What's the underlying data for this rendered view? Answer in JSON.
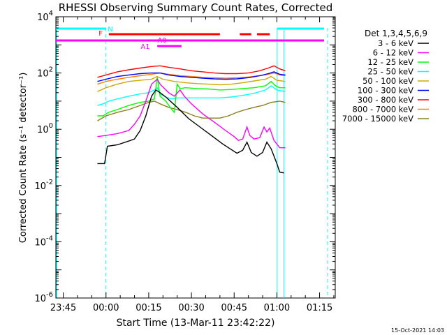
{
  "chart_data": {
    "type": "line",
    "title": "RHESSI Observing Summary Count Rates, Corrected",
    "xlabel": "Start Time (13-Mar-11 23:42:22)",
    "ylabel": "Corrected Count Rate (s⁻¹ detector⁻¹)",
    "y_scale": "log",
    "ylim": [
      1e-06,
      10000.0
    ],
    "xlim_minutes": [
      -17.6,
      80.5
    ],
    "x_tick_labels": [
      "23:45",
      "00:00",
      "00:15",
      "00:30",
      "00:45",
      "01:00",
      "01:15"
    ],
    "x_tick_minutes": [
      -15,
      0,
      15,
      30,
      45,
      60,
      75
    ],
    "y_tick_labels": [
      {
        "base": "10",
        "exp": "4",
        "value": 10000.0
      },
      {
        "base": "10",
        "exp": "2",
        "value": 100.0
      },
      {
        "base": "10",
        "exp": "0",
        "value": 1.0
      },
      {
        "base": "10",
        "exp": "-2",
        "value": 0.01
      },
      {
        "base": "10",
        "exp": "-4",
        "value": 0.0001
      },
      {
        "base": "10",
        "exp": "-6",
        "value": 1e-06
      }
    ],
    "legend_title": "Det 1,3,4,5,6,9",
    "legend_position": "right",
    "series": [
      {
        "name": "3 - 6 keV",
        "color": "#000000",
        "points": [
          [
            -3,
            0.06
          ],
          [
            -0.5,
            0.06
          ],
          [
            0.5,
            0.25
          ],
          [
            4,
            0.28
          ],
          [
            8,
            0.38
          ],
          [
            10,
            0.45
          ],
          [
            12,
            0.9
          ],
          [
            14,
            3
          ],
          [
            16,
            15
          ],
          [
            17.5,
            25
          ],
          [
            19,
            20
          ],
          [
            21,
            14
          ],
          [
            25,
            6
          ],
          [
            29,
            2.4
          ],
          [
            33,
            1.2
          ],
          [
            37,
            0.6
          ],
          [
            41,
            0.3
          ],
          [
            44,
            0.19
          ],
          [
            46,
            0.14
          ],
          [
            48,
            0.18
          ],
          [
            49.5,
            0.35
          ],
          [
            51,
            0.15
          ],
          [
            53,
            0.11
          ],
          [
            55,
            0.15
          ],
          [
            56.5,
            0.35
          ],
          [
            58,
            0.2
          ],
          [
            60,
            0.06
          ],
          [
            61,
            0.03
          ],
          [
            62.5,
            0.028
          ]
        ]
      },
      {
        "name": "6 - 12 keV",
        "color": "#ff00ff",
        "points": [
          [
            -3,
            0.55
          ],
          [
            0,
            0.6
          ],
          [
            4,
            0.7
          ],
          [
            8,
            0.9
          ],
          [
            10,
            1.5
          ],
          [
            12,
            3
          ],
          [
            14,
            10
          ],
          [
            16,
            40
          ],
          [
            18,
            60
          ],
          [
            19,
            40
          ],
          [
            22,
            20
          ],
          [
            24,
            15
          ],
          [
            26,
            25
          ],
          [
            27.5,
            15
          ],
          [
            30,
            8
          ],
          [
            34,
            3.5
          ],
          [
            38,
            1.8
          ],
          [
            42,
            0.9
          ],
          [
            45,
            0.55
          ],
          [
            46.5,
            0.4
          ],
          [
            48,
            0.45
          ],
          [
            49.5,
            1.2
          ],
          [
            50.5,
            0.6
          ],
          [
            52,
            0.45
          ],
          [
            54,
            0.5
          ],
          [
            55.5,
            1.2
          ],
          [
            56.5,
            0.8
          ],
          [
            57.5,
            1.1
          ],
          [
            59,
            0.4
          ],
          [
            61,
            0.22
          ],
          [
            63,
            0.22
          ]
        ]
      },
      {
        "name": "12 - 25 keV",
        "color": "#00ff00",
        "points": [
          [
            -3,
            3
          ],
          [
            -1,
            3
          ],
          [
            1,
            4
          ],
          [
            4,
            5
          ],
          [
            8,
            7
          ],
          [
            12,
            9
          ],
          [
            15,
            10
          ],
          [
            17,
            12
          ],
          [
            18,
            70
          ],
          [
            19,
            15
          ],
          [
            21,
            10
          ],
          [
            22.5,
            6
          ],
          [
            24,
            4
          ],
          [
            25,
            40
          ],
          [
            26,
            28
          ],
          [
            28,
            30
          ],
          [
            32,
            28
          ],
          [
            36,
            27
          ],
          [
            40,
            25
          ],
          [
            44,
            26
          ],
          [
            48,
            28
          ],
          [
            52,
            30
          ],
          [
            56,
            35
          ],
          [
            58,
            50
          ],
          [
            59.5,
            35
          ],
          [
            61,
            30
          ],
          [
            63,
            30
          ]
        ]
      },
      {
        "name": "25 - 50 keV",
        "color": "#00ffff",
        "points": [
          [
            -3,
            7
          ],
          [
            -1,
            8
          ],
          [
            1,
            10
          ],
          [
            4,
            12
          ],
          [
            8,
            15
          ],
          [
            12,
            18
          ],
          [
            15,
            20
          ],
          [
            17,
            25
          ],
          [
            18,
            30
          ],
          [
            19,
            18
          ],
          [
            21,
            14
          ],
          [
            23,
            12
          ],
          [
            25,
            13
          ],
          [
            28,
            13
          ],
          [
            32,
            13
          ],
          [
            36,
            13
          ],
          [
            40,
            13
          ],
          [
            44,
            14
          ],
          [
            48,
            16
          ],
          [
            52,
            19
          ],
          [
            56,
            25
          ],
          [
            58,
            35
          ],
          [
            60,
            25
          ],
          [
            63,
            22
          ]
        ]
      },
      {
        "name": "50 - 100 keV",
        "color": "#ccaa00",
        "points": [
          [
            -3,
            22
          ],
          [
            0,
            30
          ],
          [
            4,
            40
          ],
          [
            8,
            50
          ],
          [
            12,
            55
          ],
          [
            16,
            60
          ],
          [
            18,
            75
          ],
          [
            20,
            60
          ],
          [
            24,
            50
          ],
          [
            28,
            45
          ],
          [
            32,
            42
          ],
          [
            36,
            40
          ],
          [
            40,
            38
          ],
          [
            44,
            40
          ],
          [
            48,
            45
          ],
          [
            52,
            52
          ],
          [
            56,
            60
          ],
          [
            58,
            75
          ],
          [
            60,
            55
          ],
          [
            63,
            50
          ]
        ]
      },
      {
        "name": "100 - 300 keV",
        "color": "#0000ff",
        "points": [
          [
            -3,
            50
          ],
          [
            0,
            60
          ],
          [
            4,
            75
          ],
          [
            8,
            85
          ],
          [
            12,
            95
          ],
          [
            16,
            100
          ],
          [
            19,
            100
          ],
          [
            22,
            85
          ],
          [
            26,
            75
          ],
          [
            30,
            70
          ],
          [
            34,
            65
          ],
          [
            38,
            62
          ],
          [
            42,
            60
          ],
          [
            46,
            62
          ],
          [
            50,
            68
          ],
          [
            54,
            80
          ],
          [
            57,
            95
          ],
          [
            59,
            110
          ],
          [
            61,
            90
          ],
          [
            63,
            85
          ]
        ]
      },
      {
        "name": "300 - 800 keV",
        "color": "#ff0000",
        "points": [
          [
            -3,
            70
          ],
          [
            0,
            85
          ],
          [
            4,
            110
          ],
          [
            8,
            130
          ],
          [
            12,
            150
          ],
          [
            16,
            170
          ],
          [
            19,
            180
          ],
          [
            22,
            160
          ],
          [
            26,
            140
          ],
          [
            30,
            120
          ],
          [
            34,
            110
          ],
          [
            38,
            100
          ],
          [
            42,
            95
          ],
          [
            46,
            95
          ],
          [
            50,
            100
          ],
          [
            54,
            120
          ],
          [
            57,
            150
          ],
          [
            59,
            180
          ],
          [
            61,
            140
          ],
          [
            63,
            120
          ]
        ]
      },
      {
        "name": "800 - 7000 keV",
        "color": "#ff8000",
        "points": [
          [
            -3,
            40
          ],
          [
            0,
            50
          ],
          [
            4,
            60
          ],
          [
            8,
            70
          ],
          [
            12,
            80
          ],
          [
            16,
            90
          ],
          [
            19,
            100
          ],
          [
            22,
            90
          ],
          [
            26,
            80
          ],
          [
            30,
            75
          ],
          [
            34,
            70
          ],
          [
            38,
            68
          ],
          [
            42,
            66
          ],
          [
            46,
            68
          ],
          [
            50,
            72
          ],
          [
            54,
            80
          ],
          [
            57,
            90
          ],
          [
            59,
            100
          ],
          [
            61,
            85
          ],
          [
            63,
            80
          ]
        ]
      },
      {
        "name": "7000 - 15000 keV",
        "color": "#8b7d1e",
        "points": [
          [
            -3,
            2
          ],
          [
            0,
            3
          ],
          [
            4,
            4
          ],
          [
            8,
            5
          ],
          [
            12,
            7
          ],
          [
            15,
            9
          ],
          [
            17,
            10
          ],
          [
            19,
            8
          ],
          [
            22,
            6
          ],
          [
            25,
            5
          ],
          [
            28,
            4
          ],
          [
            31,
            3
          ],
          [
            34,
            2.5
          ],
          [
            37,
            2.5
          ],
          [
            40,
            2.5
          ],
          [
            43,
            3
          ],
          [
            46,
            4
          ],
          [
            49,
            5
          ],
          [
            52,
            6
          ],
          [
            55,
            7
          ],
          [
            58,
            9
          ],
          [
            61,
            10
          ],
          [
            63,
            9
          ]
        ]
      }
    ],
    "annotations": {
      "night_label": "N",
      "flare_label": "F",
      "attenuator_labels": [
        "A0",
        "A1"
      ],
      "timestamp": "15-Oct-2021 14:03"
    }
  }
}
